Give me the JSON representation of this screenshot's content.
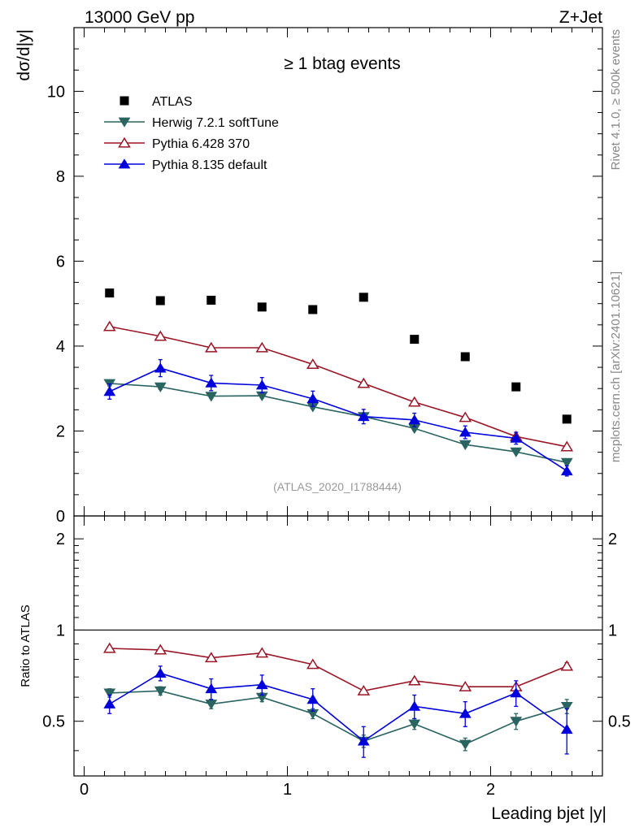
{
  "header": {
    "left": "13000 GeV pp",
    "right": "Z+Jet"
  },
  "side_labels": {
    "rivet": "Rivet 4.1.0, ≥ 500k events",
    "mcplots": "mcplots.cern.ch [arXiv:2401.10621]"
  },
  "colors": {
    "atlas": "#000000",
    "herwig": "#2a6461",
    "pythia6": "#9a1626",
    "pythia8": "#0000dd"
  },
  "chart_data": [
    {
      "type": "scatter",
      "title": "≥ 1 btag events",
      "xlabel": "",
      "ylabel": "dσ/d|y|",
      "watermark": "(ATLAS_2020_I1788444)",
      "xlim": [
        -0.05,
        2.55
      ],
      "ylim": [
        0,
        11.5
      ],
      "yticks": [
        0,
        2,
        4,
        6,
        8,
        10
      ],
      "ytick_labels": [
        "0",
        "2",
        "4",
        "6",
        "8",
        "10"
      ],
      "x": [
        0.125,
        0.375,
        0.625,
        0.875,
        1.125,
        1.375,
        1.625,
        1.875,
        2.125,
        2.375
      ],
      "series": [
        {
          "name": "ATLAS",
          "key": "atlas",
          "marker": "square",
          "line": false,
          "values": [
            5.25,
            5.07,
            5.08,
            4.92,
            4.86,
            5.15,
            4.16,
            3.75,
            3.04,
            2.28
          ],
          "errors": [
            0,
            0,
            0,
            0,
            0,
            0,
            0,
            0,
            0,
            0
          ]
        },
        {
          "name": "Herwig 7.2.1 softTune",
          "key": "herwig",
          "marker": "tri-down",
          "line": true,
          "values": [
            3.12,
            3.04,
            2.82,
            2.83,
            2.57,
            2.34,
            2.06,
            1.68,
            1.51,
            1.26
          ],
          "errors": [
            0.06,
            0.06,
            0.05,
            0.05,
            0.05,
            0.05,
            0.05,
            0.04,
            0.04,
            0.04
          ]
        },
        {
          "name": "Pythia 6.428 370",
          "key": "pythia6",
          "marker": "tri-up-open",
          "line": true,
          "values": [
            4.46,
            4.23,
            3.96,
            3.96,
            3.57,
            3.12,
            2.68,
            2.32,
            1.87,
            1.63
          ],
          "errors": [
            0.05,
            0.05,
            0.05,
            0.05,
            0.04,
            0.04,
            0.04,
            0.04,
            0.03,
            0.03
          ]
        },
        {
          "name": "Pythia 8.135 default",
          "key": "pythia8",
          "marker": "tri-up",
          "line": true,
          "values": [
            2.93,
            3.48,
            3.13,
            3.08,
            2.76,
            2.34,
            2.26,
            1.97,
            1.83,
            1.06
          ],
          "errors": [
            0.18,
            0.2,
            0.18,
            0.18,
            0.18,
            0.17,
            0.16,
            0.15,
            0.14,
            0.12
          ]
        }
      ]
    },
    {
      "type": "scatter",
      "title": "",
      "xlabel": "Leading bjet |y|",
      "ylabel": "Ratio to ATLAS",
      "xlim": [
        -0.05,
        2.55
      ],
      "ylim": [
        0.33,
        2.38
      ],
      "xticks": [
        0,
        1,
        2
      ],
      "xtick_labels": [
        "0",
        "1",
        "2"
      ],
      "yticks": [
        0.5,
        1,
        2
      ],
      "ytick_labels": [
        "0.5",
        "1",
        "2"
      ],
      "reference_line": 1,
      "x": [
        0.125,
        0.375,
        0.625,
        0.875,
        1.125,
        1.375,
        1.625,
        1.875,
        2.125,
        2.375
      ],
      "series": [
        {
          "name": "Herwig 7.2.1 softTune",
          "key": "herwig",
          "marker": "tri-down",
          "line": true,
          "values": [
            0.62,
            0.63,
            0.57,
            0.6,
            0.53,
            0.43,
            0.49,
            0.42,
            0.5,
            0.56
          ],
          "errors": [
            0.02,
            0.02,
            0.02,
            0.02,
            0.02,
            0.02,
            0.02,
            0.02,
            0.03,
            0.03
          ]
        },
        {
          "name": "Pythia 6.428 370",
          "key": "pythia6",
          "marker": "tri-up-open",
          "line": true,
          "values": [
            0.87,
            0.86,
            0.81,
            0.84,
            0.77,
            0.63,
            0.68,
            0.65,
            0.65,
            0.76
          ],
          "errors": [
            0.01,
            0.01,
            0.01,
            0.01,
            0.01,
            0.01,
            0.01,
            0.01,
            0.01,
            0.02
          ]
        },
        {
          "name": "Pythia 8.135 default",
          "key": "pythia8",
          "marker": "tri-up",
          "line": true,
          "values": [
            0.57,
            0.72,
            0.64,
            0.66,
            0.59,
            0.43,
            0.56,
            0.53,
            0.62,
            0.47
          ],
          "errors": [
            0.04,
            0.04,
            0.05,
            0.05,
            0.05,
            0.05,
            0.05,
            0.05,
            0.06,
            0.08
          ]
        }
      ]
    }
  ]
}
